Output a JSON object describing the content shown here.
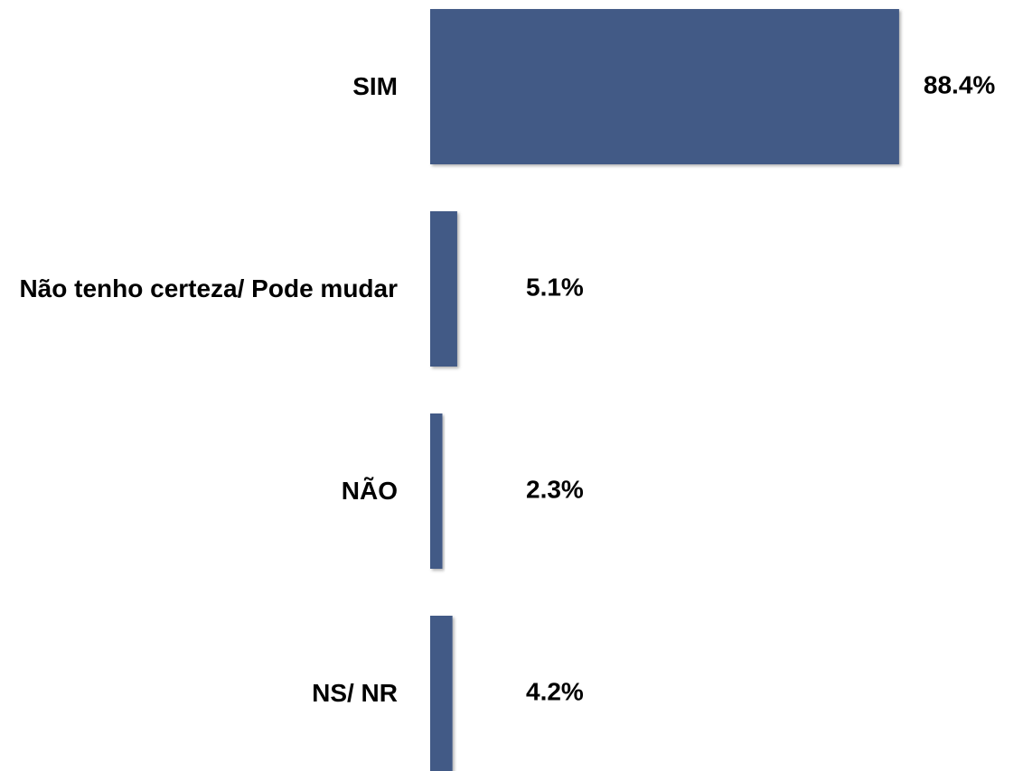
{
  "chart_data": {
    "type": "bar",
    "orientation": "horizontal",
    "categories": [
      "SIM",
      "Não tenho certeza/ Pode mudar",
      "NÃO",
      "NS/ NR"
    ],
    "values": [
      88.4,
      5.1,
      2.3,
      4.2
    ],
    "value_labels": [
      "88.4%",
      "5.1%",
      "2.3%",
      "4.2%"
    ],
    "color": "#435a86"
  }
}
